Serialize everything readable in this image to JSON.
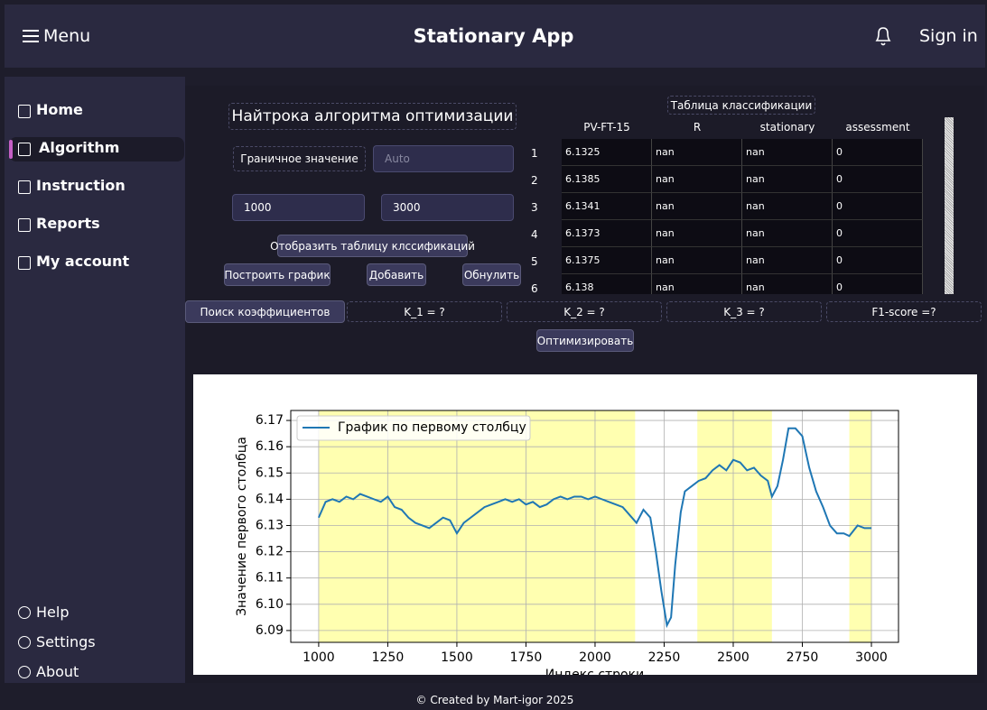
{
  "header": {
    "menu": "Menu",
    "title": "Stationary App",
    "sign_in": "Sign in"
  },
  "sidebar": {
    "nav": [
      "Home",
      "Algorithm",
      "Instruction",
      "Reports",
      "My account"
    ],
    "active": 1,
    "footer_nav": [
      "Help",
      "Settings",
      "About"
    ]
  },
  "panel": {
    "title": "Найтрока алгоритма оптимизации",
    "threshold_label": "Граничное значение",
    "threshold_placeholder": "Auto",
    "range_start": "1000",
    "range_end": "3000",
    "show_table": "Отобразить таблицу клссификаций",
    "plot": "Построить график",
    "add": "Добавить",
    "reset": "Обнулить",
    "search": "Поиск коэффициентов",
    "coefficients": [
      "K_1 = ?",
      "K_2 = ?",
      "K_3 = ?",
      "F1-score =?"
    ],
    "optimize": "Оптимизировать"
  },
  "table": {
    "title": "Таблица классификации",
    "columns": [
      "PV-FT-15",
      "R",
      "stationary",
      "assessment"
    ],
    "rows": [
      [
        1,
        6.1325,
        "nan",
        "nan",
        0
      ],
      [
        2,
        6.1385,
        "nan",
        "nan",
        0
      ],
      [
        3,
        6.1341,
        "nan",
        "nan",
        0
      ],
      [
        4,
        6.1373,
        "nan",
        "nan",
        0
      ],
      [
        5,
        6.1375,
        "nan",
        "nan",
        0
      ],
      [
        6,
        6.138,
        "nan",
        "nan",
        0
      ]
    ]
  },
  "chart_data": {
    "type": "line",
    "xlabel": "Индекс строки",
    "ylabel": "Значение первого столбца",
    "x": [
      1000,
      1025,
      1050,
      1075,
      1100,
      1125,
      1150,
      1175,
      1200,
      1225,
      1250,
      1275,
      1300,
      1325,
      1350,
      1375,
      1400,
      1425,
      1450,
      1475,
      1500,
      1525,
      1550,
      1575,
      1600,
      1625,
      1650,
      1675,
      1700,
      1725,
      1750,
      1775,
      1800,
      1825,
      1850,
      1875,
      1900,
      1925,
      1950,
      1975,
      2000,
      2025,
      2050,
      2075,
      2100,
      2125,
      2150,
      2175,
      2200,
      2220,
      2240,
      2260,
      2275,
      2290,
      2310,
      2325,
      2350,
      2375,
      2400,
      2425,
      2450,
      2475,
      2500,
      2525,
      2550,
      2575,
      2600,
      2625,
      2640,
      2660,
      2680,
      2700,
      2725,
      2750,
      2775,
      2800,
      2825,
      2850,
      2875,
      2900,
      2920,
      2950,
      2975,
      3000
    ],
    "series": [
      {
        "name": "График по первому столбцу",
        "color": "#1f77b4",
        "values": [
          6.133,
          6.139,
          6.14,
          6.139,
          6.141,
          6.14,
          6.142,
          6.141,
          6.14,
          6.139,
          6.141,
          6.137,
          6.136,
          6.133,
          6.131,
          6.13,
          6.129,
          6.131,
          6.133,
          6.132,
          6.127,
          6.131,
          6.133,
          6.135,
          6.137,
          6.138,
          6.139,
          6.14,
          6.139,
          6.14,
          6.138,
          6.139,
          6.137,
          6.138,
          6.14,
          6.141,
          6.14,
          6.141,
          6.141,
          6.14,
          6.141,
          6.14,
          6.139,
          6.138,
          6.137,
          6.134,
          6.131,
          6.136,
          6.133,
          6.12,
          6.105,
          6.092,
          6.095,
          6.115,
          6.135,
          6.143,
          6.145,
          6.147,
          6.148,
          6.151,
          6.153,
          6.151,
          6.155,
          6.154,
          6.151,
          6.152,
          6.149,
          6.147,
          6.141,
          6.145,
          6.155,
          6.167,
          6.167,
          6.164,
          6.152,
          6.143,
          6.137,
          6.13,
          6.127,
          6.127,
          6.126,
          6.13,
          6.129,
          6.129
        ]
      }
    ],
    "highlight_spans": [
      [
        1000,
        2145
      ],
      [
        2370,
        2640
      ],
      [
        2920,
        3000
      ]
    ],
    "highlight_color": "#ffffb0",
    "xlim": [
      899,
      3098
    ],
    "ylim": [
      6.0855,
      6.1738
    ],
    "xticks": [
      1000,
      1250,
      1500,
      1750,
      2000,
      2250,
      2500,
      2750,
      3000
    ],
    "yticks": [
      6.09,
      {
        "value": 6.1,
        "label": "6.10"
      },
      6.11,
      6.12,
      6.13,
      6.14,
      6.15,
      6.16,
      6.17
    ],
    "grid": true,
    "legend": "upper left"
  },
  "footer": "© Created by Mart-igor 2025"
}
